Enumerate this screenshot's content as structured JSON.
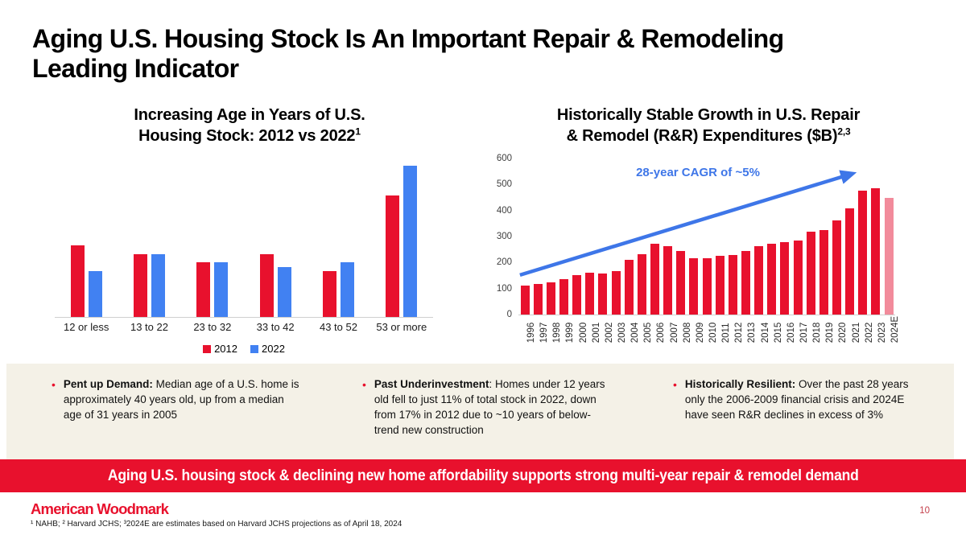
{
  "slide": {
    "title": "Aging U.S. Housing Stock Is An Important Repair & Remodeling\nLeading Indicator",
    "banner": "Aging U.S. housing stock & declining new home affordability supports strong multi-year repair & remodel demand",
    "logo_text": "American Woodmark",
    "footnote": "¹ NAHB; ² Harvard JCHS; ³2024E are estimates based on Harvard JCHS projections as of April 18, 2024",
    "page_number": "10"
  },
  "colors": {
    "brand_red": "#E8112D",
    "bar_blue": "#4181F2",
    "estimate_pink": "#F28B9B",
    "arrow_blue": "#3E76E8",
    "panel_beige": "#F4F1E7",
    "banner_red": "#E8112D",
    "page_number_red": "#C4404C",
    "axis_line_gray": "#CFCFCF"
  },
  "bullets": [
    {
      "lead": "Pent up Demand:",
      "rest": " Median age of a U.S. home is approximately 40 years old, up from a median age of 31 years in 2005"
    },
    {
      "lead": "Past Underinvestment",
      "rest": ": Homes under 12 years old fell to just 11% of total stock in 2022, down from 17% in 2012 due to ~10 years of below-trend new construction"
    },
    {
      "lead": "Historically Resilient:",
      "rest": " Over the past 28 years only the 2006-2009 financial crisis and 2024E have seen R&R declines in excess of 3%"
    }
  ],
  "chart_data": [
    {
      "type": "bar",
      "name": "housing-age",
      "title": "Increasing Age in Years of U.S.\nHousing Stock: 2012 vs 2022",
      "title_superscript": "1",
      "categories": [
        "12 or less",
        "13 to 22",
        "23 to 32",
        "33 to 42",
        "43 to 52",
        "53 or more"
      ],
      "series": [
        {
          "name": "2012",
          "color": "#E8112D",
          "values": [
            17,
            15,
            13,
            15,
            11,
            29
          ]
        },
        {
          "name": "2022",
          "color": "#4181F2",
          "values": [
            11,
            15,
            13,
            12,
            13,
            36
          ]
        }
      ],
      "ylim": [
        0,
        38
      ],
      "y_axis_visible": false,
      "legend_position": "bottom"
    },
    {
      "type": "bar",
      "name": "rr-expenditures",
      "title": "Historically Stable Growth in U.S. Repair\n& Remodel (R&R) Expenditures ($B)",
      "title_superscript": "2,3",
      "x": [
        "1996",
        "1997",
        "1998",
        "1999",
        "2000",
        "2001",
        "2002",
        "2003",
        "2004",
        "2005",
        "2006",
        "2007",
        "2008",
        "2009",
        "2010",
        "2011",
        "2012",
        "2013",
        "2014",
        "2015",
        "2016",
        "2017",
        "2018",
        "2019",
        "2020",
        "2021",
        "2022",
        "2023",
        "2024E"
      ],
      "values": [
        110,
        118,
        123,
        135,
        153,
        162,
        158,
        166,
        212,
        233,
        272,
        262,
        244,
        218,
        218,
        226,
        230,
        244,
        263,
        273,
        277,
        286,
        320,
        326,
        361,
        408,
        475,
        485,
        450
      ],
      "bar_color": "#E8112D",
      "estimate_bar_color": "#F28B9B",
      "estimate_index": 28,
      "ylim": [
        0,
        600
      ],
      "yticks": [
        0,
        100,
        200,
        300,
        400,
        500,
        600
      ],
      "annotation": {
        "text": "28-year CAGR of ~5%",
        "color": "#3E76E8"
      },
      "trend_arrow": {
        "start_value": 152,
        "end_value": 542,
        "start_x_frac": 0.004,
        "end_x_frac": 0.887,
        "color": "#3E76E8"
      }
    }
  ]
}
